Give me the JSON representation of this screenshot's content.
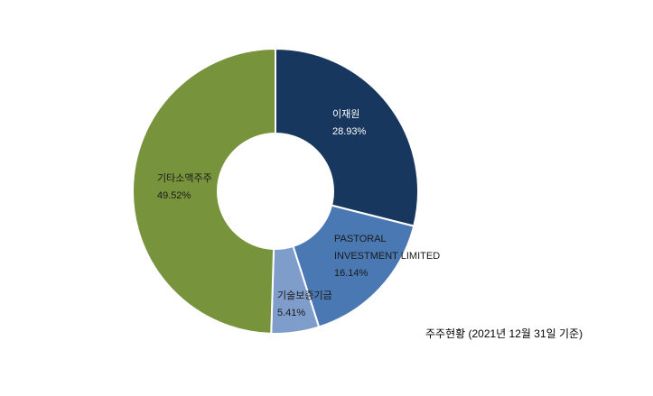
{
  "chart_data": {
    "type": "pie",
    "variant": "donut",
    "start": "top",
    "direction": "clockwise",
    "slices": [
      {
        "label": "이재원",
        "value": 28.93,
        "value_label": "28.93%",
        "color": "#17375E",
        "text_color": "#ffffff"
      },
      {
        "label": "PASTORAL INVESTMENT LIMITED",
        "label_lines": [
          "PASTORAL",
          "INVESTMENT LIMITED"
        ],
        "value": 16.14,
        "value_label": "16.14%",
        "color": "#4A78B3",
        "text_color": "#1a1a1a"
      },
      {
        "label": "기술보증기금",
        "value": 5.41,
        "value_label": "5.41%",
        "color": "#7E9DCB",
        "text_color": "#1a1a1a"
      },
      {
        "label": "기타소액주주",
        "value": 49.52,
        "value_label": "49.52%",
        "color": "#77933C",
        "text_color": "#1a1a1a"
      }
    ],
    "caption": "주주현황  (2021년 12월 31일 기준)"
  }
}
